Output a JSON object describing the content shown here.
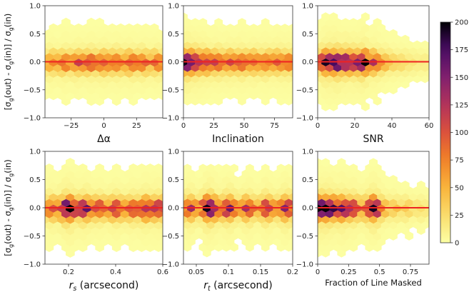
{
  "chart_data": [
    {
      "type": "heatmap",
      "xlabel": "Δα",
      "xlim": [
        -45,
        45
      ],
      "xticks": [
        -25,
        0,
        25
      ],
      "ylim": [
        -1.0,
        1.0
      ],
      "yticks": [
        -1.0,
        -0.5,
        0.0,
        0.5,
        1.0
      ],
      "ylabel": "[σg(out) - σg(in)] / σg(in)",
      "reference_line_y": 0.0,
      "columns": [
        {
          "x": -40,
          "peak": 80
        },
        {
          "x": -30,
          "peak": 90
        },
        {
          "x": -20,
          "peak": 100
        },
        {
          "x": -10,
          "peak": 100
        },
        {
          "x": 0,
          "peak": 105
        },
        {
          "x": 10,
          "peak": 100
        },
        {
          "x": 20,
          "peak": 100
        },
        {
          "x": 30,
          "peak": 95
        },
        {
          "x": 40,
          "peak": 85
        }
      ]
    },
    {
      "type": "heatmap",
      "xlabel": "Inclination",
      "xlim": [
        0,
        90
      ],
      "xticks": [
        0,
        25,
        50,
        75
      ],
      "ylim": [
        -1.0,
        1.0
      ],
      "reference_line_y": 0.0,
      "columns": [
        {
          "x": 3,
          "peak": 200
        },
        {
          "x": 10,
          "peak": 160
        },
        {
          "x": 18,
          "peak": 130
        },
        {
          "x": 28,
          "peak": 110
        },
        {
          "x": 38,
          "peak": 100
        },
        {
          "x": 48,
          "peak": 100
        },
        {
          "x": 58,
          "peak": 95
        },
        {
          "x": 68,
          "peak": 95
        },
        {
          "x": 78,
          "peak": 95
        },
        {
          "x": 86,
          "peak": 90
        }
      ]
    },
    {
      "type": "heatmap",
      "xlabel": "SNR",
      "xlim": [
        0,
        60
      ],
      "xticks": [
        0,
        20,
        40,
        60
      ],
      "ylim": [
        -1.0,
        1.0
      ],
      "reference_line_y": 0.0,
      "columns": [
        {
          "x": 5,
          "peak": 180
        },
        {
          "x": 10,
          "peak": 200
        },
        {
          "x": 15,
          "peak": 170
        },
        {
          "x": 20,
          "peak": 150
        },
        {
          "x": 25,
          "peak": 190
        },
        {
          "x": 30,
          "peak": 110
        },
        {
          "x": 35,
          "peak": 60
        },
        {
          "x": 40,
          "peak": 40
        },
        {
          "x": 45,
          "peak": 30
        },
        {
          "x": 50,
          "peak": 20
        },
        {
          "x": 55,
          "peak": 15
        }
      ]
    },
    {
      "type": "heatmap",
      "xlabel": "r_s (arcsecond)",
      "xlim": [
        0.1,
        0.6
      ],
      "xticks": [
        0.2,
        0.4,
        0.6
      ],
      "ylim": [
        -1.0,
        1.0
      ],
      "yticks": [
        -1.0,
        -0.5,
        0.0,
        0.5,
        1.0
      ],
      "ylabel": "[σg(out) - σg(in)] / σg(in)",
      "reference_line_y": 0.0,
      "columns": [
        {
          "x": 0.13,
          "peak": 100
        },
        {
          "x": 0.2,
          "peak": 200
        },
        {
          "x": 0.27,
          "peak": 150
        },
        {
          "x": 0.33,
          "peak": 110
        },
        {
          "x": 0.4,
          "peak": 120
        },
        {
          "x": 0.47,
          "peak": 110
        },
        {
          "x": 0.53,
          "peak": 140
        },
        {
          "x": 0.58,
          "peak": 130
        }
      ]
    },
    {
      "type": "heatmap",
      "xlabel": "r_t (arcsecond)",
      "xlim": [
        0.03,
        0.2
      ],
      "xticks": [
        0.05,
        0.1,
        0.15,
        0.2
      ],
      "ylim": [
        -1.0,
        1.0
      ],
      "reference_line_y": 0.0,
      "columns": [
        {
          "x": 0.04,
          "peak": 120
        },
        {
          "x": 0.07,
          "peak": 200
        },
        {
          "x": 0.1,
          "peak": 150
        },
        {
          "x": 0.13,
          "peak": 120
        },
        {
          "x": 0.16,
          "peak": 130
        },
        {
          "x": 0.19,
          "peak": 140
        }
      ]
    },
    {
      "type": "heatmap",
      "xlabel": "Fraction of Line Masked",
      "xlim": [
        0.0,
        0.9
      ],
      "xticks": [
        0.0,
        0.25,
        0.5,
        0.75
      ],
      "ylim": [
        -1.0,
        1.0
      ],
      "reference_line_y": 0.0,
      "columns": [
        {
          "x": 0.01,
          "peak": 200
        },
        {
          "x": 0.05,
          "peak": 200
        },
        {
          "x": 0.1,
          "peak": 190
        },
        {
          "x": 0.2,
          "peak": 170
        },
        {
          "x": 0.28,
          "peak": 130
        },
        {
          "x": 0.45,
          "peak": 180
        },
        {
          "x": 0.52,
          "peak": 70
        },
        {
          "x": 0.62,
          "peak": 45
        },
        {
          "x": 0.72,
          "peak": 35
        },
        {
          "x": 0.82,
          "peak": 25
        }
      ]
    }
  ],
  "colorbar": {
    "min": 0,
    "max": 200,
    "ticks": [
      0,
      25,
      50,
      75,
      100,
      125,
      150,
      175,
      200
    ]
  }
}
